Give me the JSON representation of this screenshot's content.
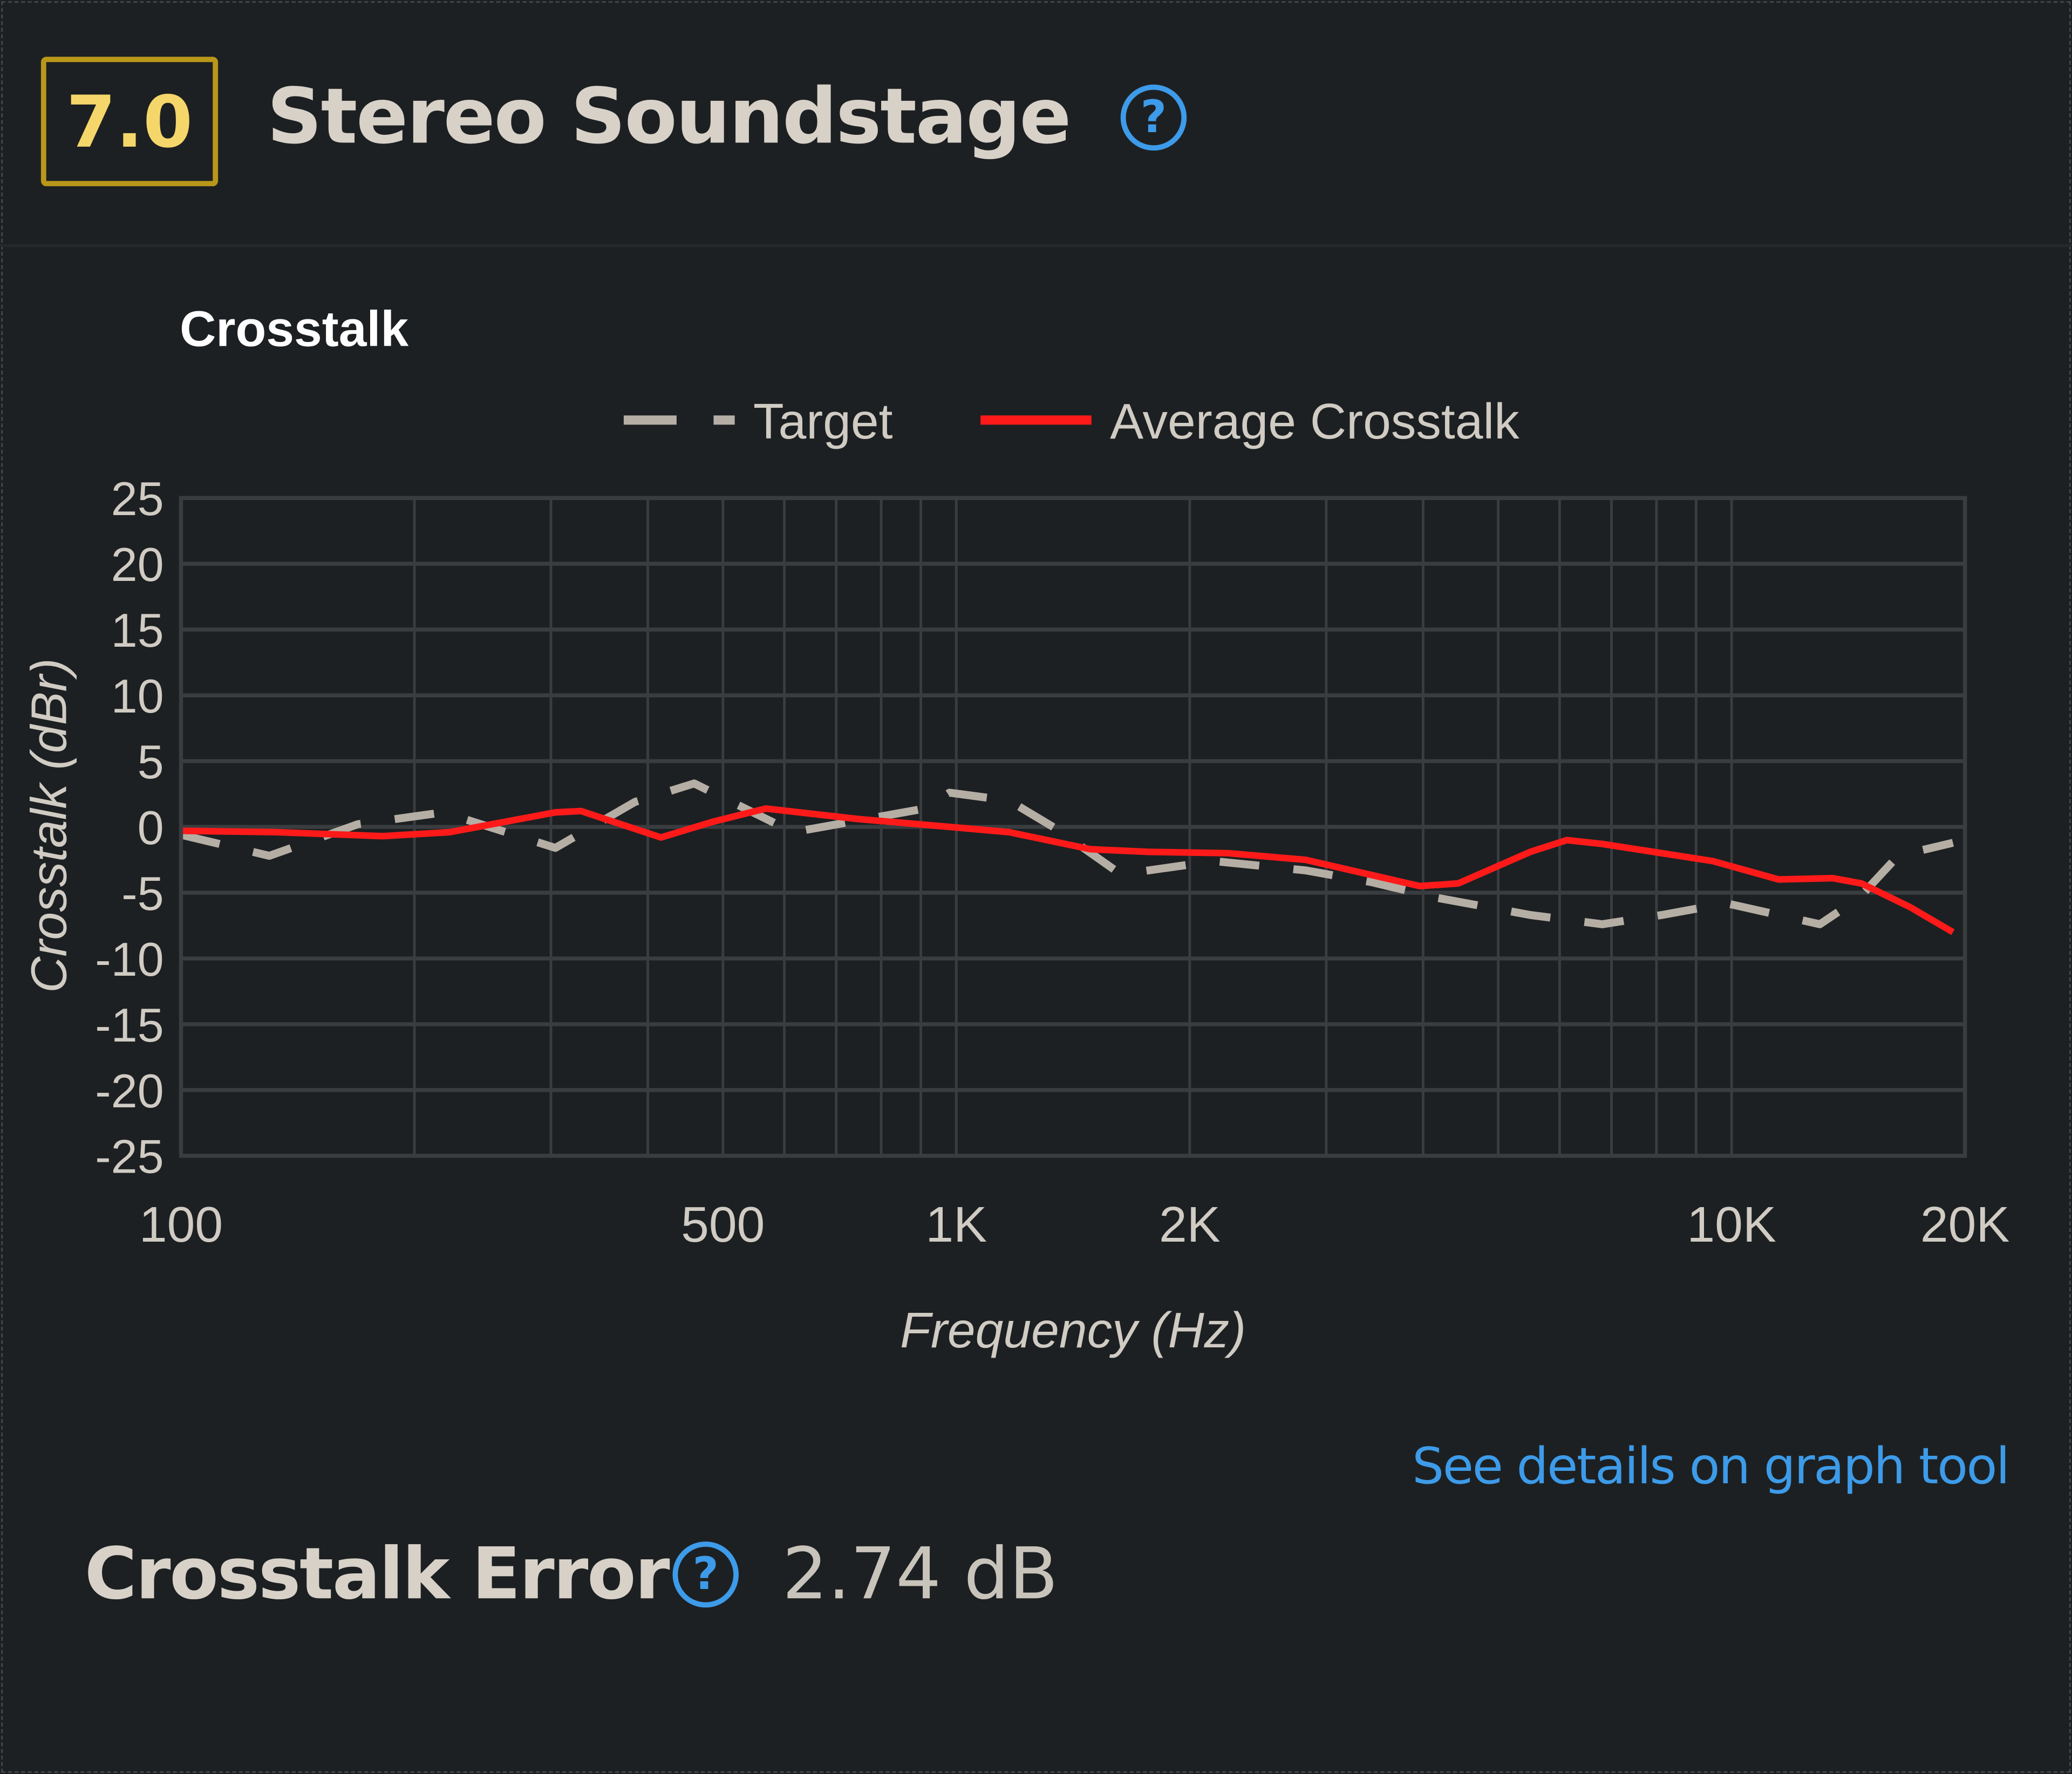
{
  "header": {
    "score": "7.0",
    "title": "Stereo Soundstage",
    "help_icon": "question-circle-icon"
  },
  "link_label": "See details on graph tool",
  "metric": {
    "label": "Crosstalk Error",
    "value": "2.74 dB",
    "help_icon": "question-circle-icon"
  },
  "colors": {
    "background": "#1d2022",
    "score_border": "#b8971a",
    "score_text": "#f5d66a",
    "accent": "#3d9be9",
    "target": "#b5aea4",
    "crosstalk": "#ff1a1a",
    "grid": "#3a3d40"
  },
  "chart_data": {
    "type": "line",
    "title": "Crosstalk",
    "xlabel": "Frequency (Hz)",
    "ylabel": "Crosstalk (dBr)",
    "xscale": "log",
    "xlim": [
      100,
      20000
    ],
    "ylim": [
      -25,
      25
    ],
    "grid": true,
    "legend_position": "top",
    "x_ticks": [
      {
        "value": 100,
        "label": "100"
      },
      {
        "value": 500,
        "label": "500"
      },
      {
        "value": 1000,
        "label": "1K"
      },
      {
        "value": 2000,
        "label": "2K"
      },
      {
        "value": 10000,
        "label": "10K"
      },
      {
        "value": 20000,
        "label": "20K"
      }
    ],
    "y_ticks": [
      25,
      20,
      15,
      10,
      5,
      0,
      -5,
      -10,
      -15,
      -20,
      -25
    ],
    "series": [
      {
        "name": "Target",
        "style": "dashed",
        "x": [
          100,
          130,
          169,
          218,
          304,
          385,
          459,
          616,
          911,
          980,
          1170,
          1350,
          1630,
          2150,
          2820,
          3430,
          4180,
          5500,
          6810,
          8130,
          9840,
          13000,
          14600,
          16400,
          19300
        ],
        "y": [
          -0.6,
          -2.2,
          0.2,
          1.1,
          -1.6,
          1.9,
          3.3,
          -0.4,
          1.4,
          2.6,
          2.0,
          -0.2,
          -3.6,
          -2.6,
          -3.3,
          -4.2,
          -5.4,
          -6.7,
          -7.4,
          -6.7,
          -5.8,
          -7.4,
          -5.4,
          -2.2,
          -1.2
        ]
      },
      {
        "name": "Average Crosstalk",
        "style": "solid",
        "x": [
          100,
          133,
          182,
          222,
          304,
          328,
          416,
          486,
          568,
          746,
          980,
          1170,
          1490,
          1770,
          2240,
          2820,
          3960,
          4440,
          5500,
          6130,
          6810,
          9460,
          11500,
          13500,
          14700,
          17000,
          19300
        ],
        "y": [
          -0.3,
          -0.4,
          -0.7,
          -0.4,
          1.1,
          1.2,
          -0.8,
          0.4,
          1.4,
          0.6,
          0.0,
          -0.4,
          -1.7,
          -1.9,
          -2.0,
          -2.5,
          -4.5,
          -4.3,
          -1.9,
          -1.0,
          -1.3,
          -2.6,
          -4.0,
          -3.9,
          -4.3,
          -6.1,
          -8.0
        ]
      }
    ]
  }
}
